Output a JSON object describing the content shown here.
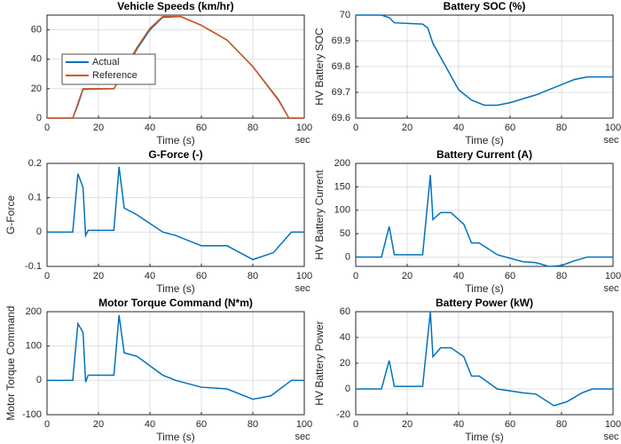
{
  "chart_data": [
    {
      "type": "line",
      "title": "Vehicle Speeds (km/hr)",
      "xlabel": "Time (s)",
      "x_unit": "sec",
      "x": [
        0,
        10,
        12,
        14,
        26,
        30,
        35,
        40,
        45,
        52,
        60,
        70,
        80,
        90,
        94,
        100
      ],
      "series": [
        {
          "name": "Actual",
          "color": "#0072bd",
          "values": [
            0,
            0,
            9,
            19.5,
            20,
            32,
            47,
            60,
            68.5,
            69,
            63,
            53,
            35,
            12.5,
            0,
            0
          ]
        },
        {
          "name": "Reference",
          "color": "#d95319",
          "values": [
            0,
            0,
            10,
            20,
            20,
            33,
            48,
            61,
            69,
            69,
            63,
            53,
            35,
            12,
            0,
            0
          ]
        }
      ],
      "xlim": [
        0,
        100
      ],
      "xticks": [
        0,
        20,
        40,
        60,
        80,
        100
      ],
      "ylim": [
        0,
        70
      ],
      "yticks": [
        0,
        20,
        40,
        60
      ],
      "grid": true,
      "legend": "upper left"
    },
    {
      "type": "line",
      "title": "Battery SOC (%)",
      "xlabel": "Time (s)",
      "x_unit": "sec",
      "ylabel": "HV Battery SOC",
      "x": [
        0,
        10,
        13,
        15,
        26,
        28,
        30,
        35,
        40,
        45,
        50,
        55,
        60,
        70,
        80,
        85,
        90,
        100
      ],
      "series": [
        {
          "color": "#0072bd",
          "values": [
            70,
            70,
            69.99,
            69.97,
            69.965,
            69.95,
            69.89,
            69.8,
            69.71,
            69.67,
            69.65,
            69.65,
            69.66,
            69.69,
            69.73,
            69.75,
            69.76,
            69.76
          ]
        }
      ],
      "xlim": [
        0,
        100
      ],
      "xticks": [
        0,
        20,
        40,
        60,
        80,
        100
      ],
      "ylim": [
        69.6,
        70
      ],
      "yticks": [
        69.6,
        69.7,
        69.8,
        69.9,
        70
      ],
      "grid": true
    },
    {
      "type": "line",
      "title": "G-Force (-)",
      "xlabel": "Time (s)",
      "x_unit": "sec",
      "ylabel": "G-Force",
      "x": [
        0,
        10,
        12,
        14,
        15,
        16,
        26,
        28,
        30,
        35,
        45,
        50,
        60,
        70,
        80,
        88,
        95,
        100
      ],
      "series": [
        {
          "color": "#0072bd",
          "values": [
            0,
            0,
            0.17,
            0.13,
            -0.01,
            0.005,
            0.005,
            0.19,
            0.07,
            0.05,
            0,
            -0.01,
            -0.04,
            -0.04,
            -0.08,
            -0.06,
            0,
            0
          ]
        }
      ],
      "xlim": [
        0,
        100
      ],
      "xticks": [
        0,
        20,
        40,
        60,
        80,
        100
      ],
      "ylim": [
        -0.1,
        0.2
      ],
      "yticks": [
        -0.1,
        0,
        0.1,
        0.2
      ],
      "grid": true
    },
    {
      "type": "line",
      "title": "Battery Current (A)",
      "xlabel": "Time (s)",
      "x_unit": "sec",
      "ylabel": "HV Battery Current",
      "x": [
        0,
        10,
        13,
        15,
        26,
        29,
        30,
        33,
        37,
        42,
        45,
        48,
        55,
        65,
        70,
        75,
        80,
        85,
        90,
        100
      ],
      "series": [
        {
          "color": "#0072bd",
          "values": [
            0,
            0,
            65,
            5,
            5,
            175,
            80,
            95,
            95,
            70,
            30,
            30,
            5,
            -10,
            -12,
            -20,
            -18,
            -8,
            0,
            0
          ]
        }
      ],
      "xlim": [
        0,
        100
      ],
      "xticks": [
        0,
        20,
        40,
        60,
        80,
        100
      ],
      "ylim": [
        -20,
        200
      ],
      "yticks": [
        0,
        50,
        100,
        150,
        200
      ],
      "grid": true
    },
    {
      "type": "line",
      "title": "Motor Torque Command (N*m)",
      "xlabel": "Time (s)",
      "x_unit": "sec",
      "ylabel": "Motor Torque Command",
      "x": [
        0,
        10,
        12,
        14,
        15,
        16,
        26,
        28,
        30,
        35,
        45,
        50,
        60,
        70,
        80,
        87,
        95,
        100
      ],
      "series": [
        {
          "color": "#0072bd",
          "values": [
            0,
            0,
            165,
            140,
            -5,
            15,
            15,
            190,
            80,
            70,
            15,
            0,
            -20,
            -25,
            -55,
            -45,
            0,
            0
          ]
        }
      ],
      "xlim": [
        0,
        100
      ],
      "xticks": [
        0,
        20,
        40,
        60,
        80,
        100
      ],
      "ylim": [
        -100,
        200
      ],
      "yticks": [
        -100,
        0,
        100,
        200
      ],
      "grid": true
    },
    {
      "type": "line",
      "title": "Battery Power (kW)",
      "xlabel": "Time (s)",
      "x_unit": "sec",
      "ylabel": "HV Battery Power",
      "x": [
        0,
        10,
        13,
        15,
        26,
        29,
        30,
        33,
        37,
        42,
        45,
        48,
        55,
        65,
        70,
        77,
        82,
        88,
        92,
        100
      ],
      "series": [
        {
          "color": "#0072bd",
          "values": [
            0,
            0,
            22,
            2,
            2,
            60,
            25,
            32,
            32,
            25,
            10,
            10,
            0,
            -3,
            -4,
            -13,
            -10,
            -3,
            0,
            0
          ]
        }
      ],
      "xlim": [
        0,
        100
      ],
      "xticks": [
        0,
        20,
        40,
        60,
        80,
        100
      ],
      "ylim": [
        -20,
        60
      ],
      "yticks": [
        -20,
        0,
        20,
        40,
        60
      ],
      "grid": true
    }
  ]
}
